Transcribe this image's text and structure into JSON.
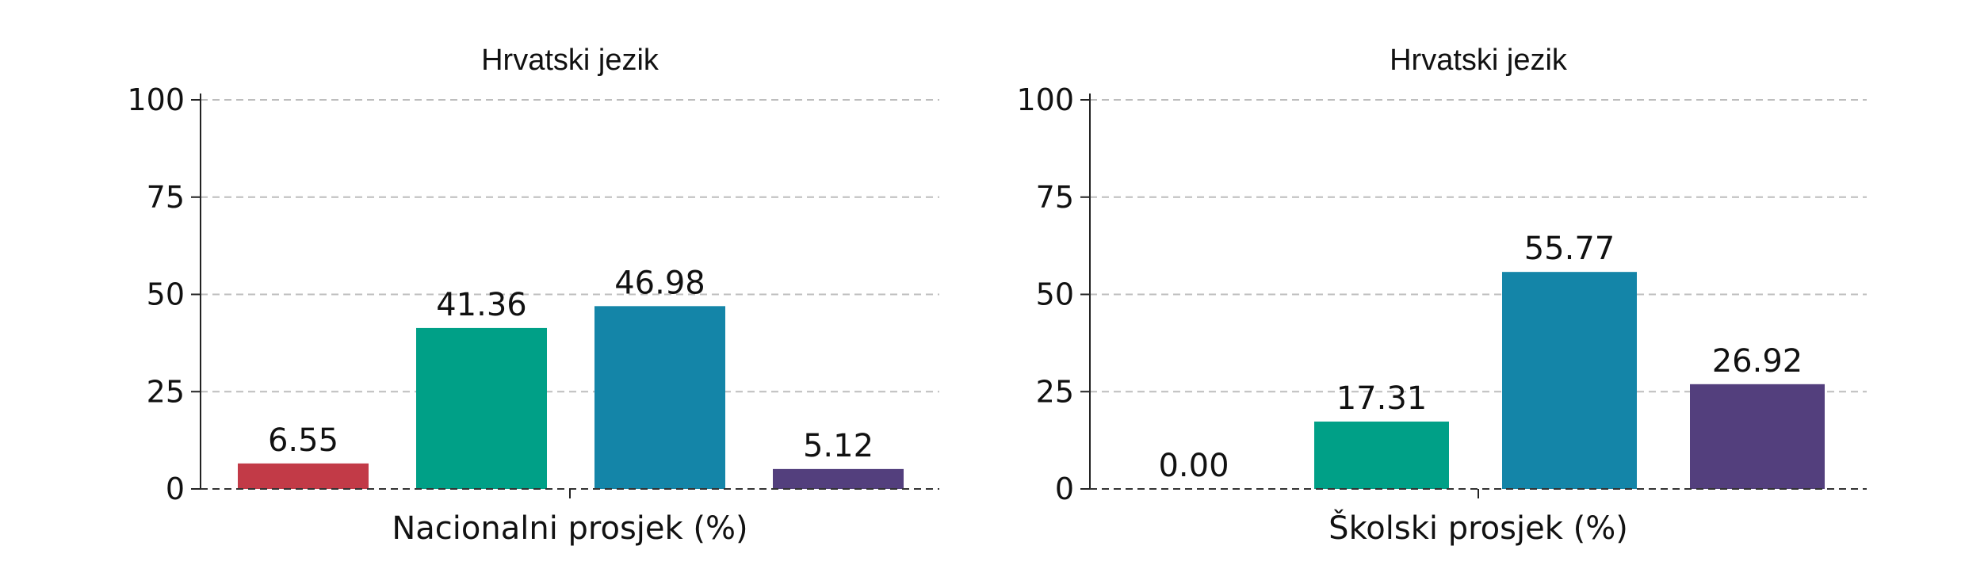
{
  "chart_data": [
    {
      "type": "bar",
      "title": "Hrvatski jezik",
      "xlabel": "Nacionalni prosjek (%)",
      "ylabel": "",
      "ylim": [
        0,
        100
      ],
      "yticks": [
        0,
        25,
        50,
        75,
        100
      ],
      "grid": true,
      "values": [
        6.55,
        41.36,
        46.98,
        5.12
      ],
      "value_labels": [
        "6.55",
        "41.36",
        "46.98",
        "5.12"
      ],
      "colors": [
        "#c23a47",
        "#00a087",
        "#1485a8",
        "#533f7d"
      ]
    },
    {
      "type": "bar",
      "title": "Hrvatski jezik",
      "xlabel": "Školski prosjek (%)",
      "ylabel": "",
      "ylim": [
        0,
        100
      ],
      "yticks": [
        0,
        25,
        50,
        75,
        100
      ],
      "grid": true,
      "values": [
        0.0,
        17.31,
        55.77,
        26.92
      ],
      "value_labels": [
        "0.00",
        "17.31",
        "55.77",
        "26.92"
      ],
      "colors": [
        "#c23a47",
        "#00a087",
        "#1485a8",
        "#533f7d"
      ]
    }
  ]
}
